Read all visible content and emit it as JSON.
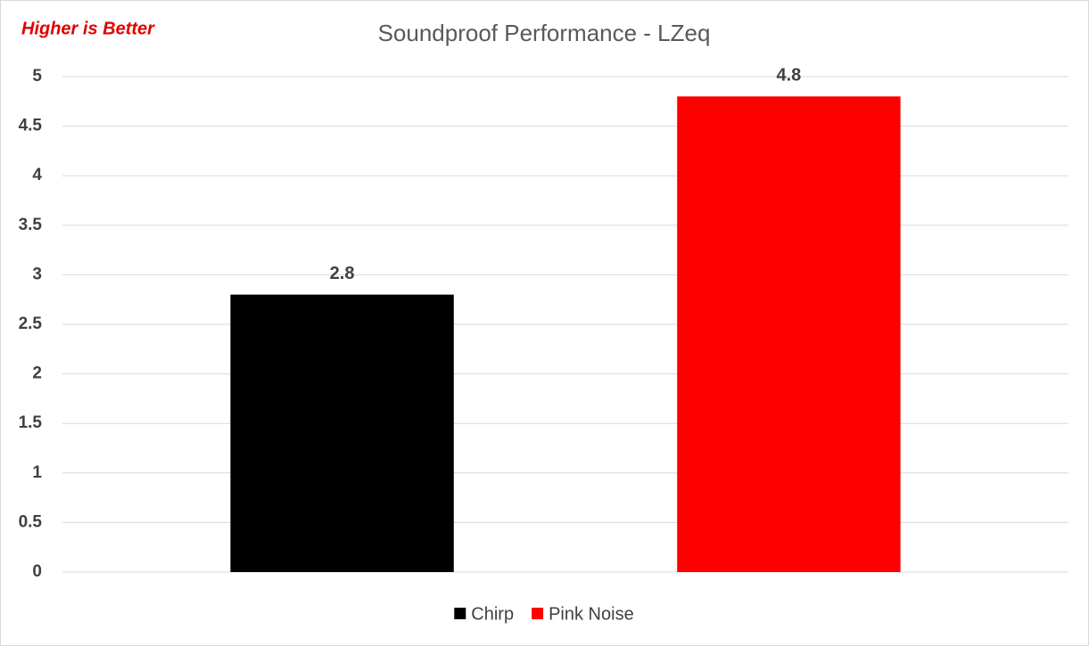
{
  "chart_data": {
    "type": "bar",
    "title": "Soundproof Performance - LZeq",
    "annotation": "Higher is Better",
    "categories": [
      null
    ],
    "series": [
      {
        "name": "Chirp",
        "color": "#000000",
        "values": [
          2.8
        ]
      },
      {
        "name": "Pink Noise",
        "color": "#ff0000",
        "values": [
          4.8
        ]
      }
    ],
    "ylim": [
      0,
      5
    ],
    "yticks": [
      0,
      0.5,
      1,
      1.5,
      2,
      2.5,
      3,
      3.5,
      4,
      4.5,
      5
    ],
    "grid": true,
    "legend": "bottom",
    "data_labels": true
  }
}
